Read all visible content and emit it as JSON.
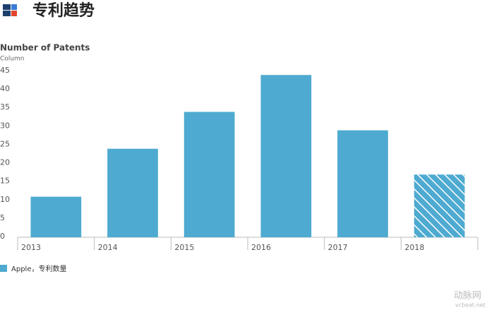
{
  "header": {
    "title": "专利趋势"
  },
  "watermark": {
    "brand": "动脉网",
    "site": "vcbeat.net"
  },
  "chart_data": {
    "type": "bar",
    "title": "Number of Patents",
    "subtitle": "Column",
    "categories": [
      "2013",
      "2014",
      "2015",
      "2016",
      "2017",
      "2018"
    ],
    "series": [
      {
        "name": "Apple，专利数量",
        "color": "#4eaad0",
        "values": [
          11,
          24,
          34,
          44,
          29,
          17
        ]
      }
    ],
    "hatched": [
      false,
      false,
      false,
      false,
      false,
      true
    ],
    "ylim": [
      0,
      45
    ],
    "yticks": [
      0,
      5,
      10,
      15,
      20,
      25,
      30,
      35,
      40,
      45
    ],
    "grid": false,
    "legend": "bottom-left"
  }
}
